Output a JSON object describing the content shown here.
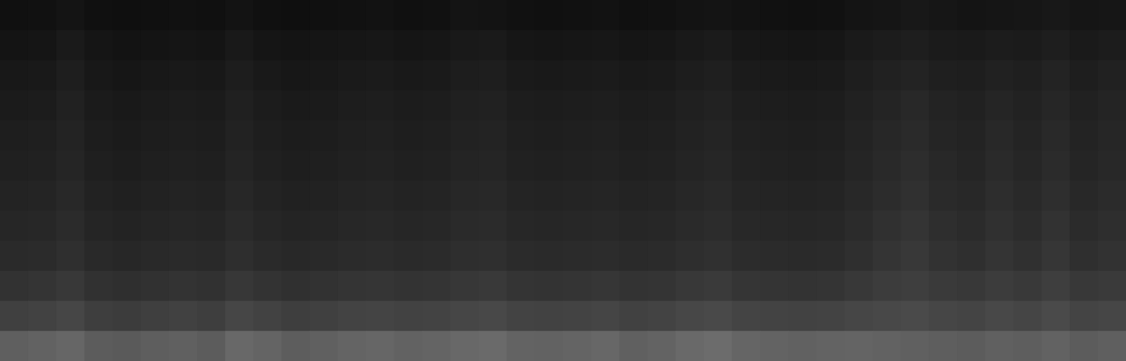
{
  "chart_data": {
    "type": "heatmap",
    "tick_labels": false,
    "cells": [
      [
        16,
        17,
        20,
        16,
        15,
        16,
        17,
        16,
        19,
        16,
        15,
        16,
        17,
        18,
        16,
        17,
        20,
        19,
        17,
        16,
        17,
        18,
        16,
        17,
        19,
        20,
        18,
        17,
        16,
        17,
        20,
        21,
        24,
        22,
        20,
        21,
        22,
        24,
        21,
        22
      ],
      [
        20,
        21,
        26,
        21,
        19,
        20,
        21,
        20,
        25,
        21,
        20,
        21,
        22,
        23,
        21,
        22,
        25,
        26,
        22,
        21,
        22,
        23,
        21,
        22,
        25,
        27,
        23,
        22,
        21,
        22,
        26,
        28,
        30,
        27,
        26,
        28,
        27,
        30,
        26,
        28
      ],
      [
        24,
        25,
        30,
        24,
        22,
        24,
        25,
        24,
        29,
        25,
        23,
        24,
        26,
        27,
        25,
        26,
        29,
        30,
        26,
        25,
        26,
        27,
        25,
        26,
        29,
        31,
        27,
        26,
        25,
        26,
        30,
        33,
        35,
        31,
        30,
        33,
        31,
        35,
        30,
        33
      ],
      [
        27,
        28,
        33,
        27,
        25,
        27,
        28,
        27,
        32,
        28,
        26,
        27,
        29,
        30,
        28,
        29,
        32,
        33,
        29,
        28,
        29,
        30,
        28,
        29,
        32,
        34,
        30,
        29,
        28,
        29,
        33,
        36,
        40,
        35,
        33,
        37,
        34,
        38,
        33,
        36
      ],
      [
        30,
        31,
        35,
        29,
        27,
        29,
        30,
        29,
        34,
        30,
        28,
        29,
        31,
        32,
        30,
        31,
        34,
        35,
        31,
        30,
        31,
        32,
        30,
        31,
        34,
        36,
        32,
        31,
        30,
        31,
        35,
        39,
        42,
        37,
        35,
        40,
        36,
        41,
        35,
        38
      ],
      [
        32,
        33,
        37,
        31,
        29,
        31,
        32,
        31,
        36,
        32,
        30,
        31,
        33,
        34,
        32,
        33,
        36,
        37,
        33,
        32,
        33,
        34,
        32,
        33,
        36,
        38,
        34,
        33,
        32,
        33,
        37,
        41,
        45,
        40,
        37,
        42,
        38,
        43,
        37,
        40
      ],
      [
        35,
        36,
        40,
        34,
        32,
        34,
        35,
        34,
        39,
        35,
        33,
        34,
        36,
        37,
        35,
        36,
        39,
        40,
        36,
        35,
        36,
        37,
        35,
        36,
        39,
        41,
        37,
        36,
        35,
        36,
        40,
        44,
        48,
        42,
        40,
        45,
        41,
        46,
        40,
        43
      ],
      [
        38,
        39,
        43,
        37,
        35,
        37,
        38,
        37,
        42,
        38,
        36,
        37,
        39,
        40,
        38,
        39,
        42,
        43,
        39,
        38,
        39,
        40,
        38,
        39,
        42,
        44,
        40,
        39,
        38,
        39,
        43,
        48,
        52,
        46,
        43,
        48,
        44,
        50,
        43,
        46
      ],
      [
        42,
        43,
        47,
        41,
        39,
        41,
        42,
        41,
        46,
        42,
        40,
        41,
        43,
        44,
        42,
        43,
        46,
        47,
        43,
        42,
        43,
        44,
        42,
        43,
        46,
        48,
        44,
        43,
        42,
        43,
        47,
        52,
        56,
        50,
        47,
        52,
        48,
        54,
        47,
        50
      ],
      [
        50,
        52,
        56,
        49,
        47,
        49,
        51,
        49,
        55,
        51,
        48,
        50,
        52,
        53,
        51,
        52,
        55,
        57,
        52,
        51,
        52,
        54,
        51,
        52,
        56,
        58,
        53,
        52,
        51,
        52,
        56,
        60,
        62,
        58,
        56,
        60,
        57,
        62,
        56,
        58
      ],
      [
        64,
        66,
        70,
        62,
        60,
        63,
        65,
        62,
        70,
        66,
        62,
        64,
        67,
        68,
        66,
        67,
        70,
        72,
        67,
        66,
        67,
        69,
        65,
        67,
        71,
        73,
        68,
        67,
        66,
        67,
        70,
        72,
        74,
        70,
        68,
        72,
        69,
        74,
        68,
        70
      ],
      [
        95,
        98,
        102,
        92,
        90,
        94,
        96,
        92,
        104,
        100,
        93,
        96,
        100,
        102,
        98,
        100,
        104,
        106,
        99,
        98,
        100,
        103,
        96,
        99,
        105,
        108,
        101,
        99,
        97,
        99,
        100,
        98,
        96,
        94,
        92,
        96,
        94,
        98,
        92,
        95
      ]
    ]
  }
}
